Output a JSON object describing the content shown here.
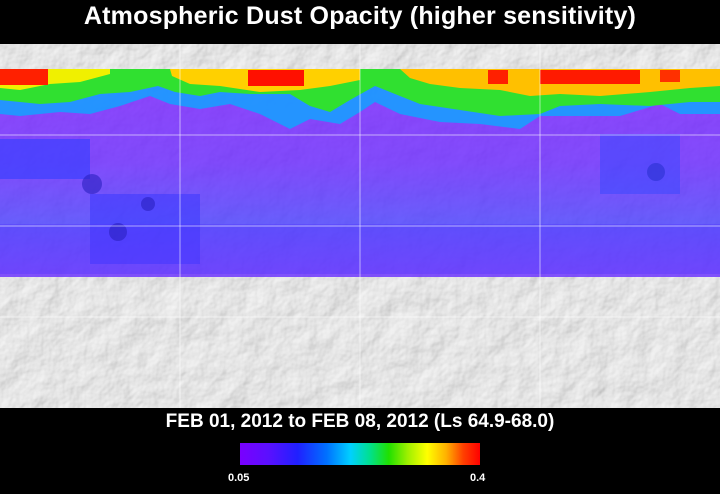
{
  "title": "Atmospheric Dust Opacity (higher sensitivity)",
  "date_range": "FEB 01, 2012 to FEB 08, 2012 (Ls 64.9-68.0)",
  "colorbar": {
    "min_label": "0.05",
    "max_label": "0.4"
  },
  "colors": {
    "low": "#7a00ff",
    "mid": "#00e090",
    "high": "#ff0000",
    "background": "#000000"
  }
}
